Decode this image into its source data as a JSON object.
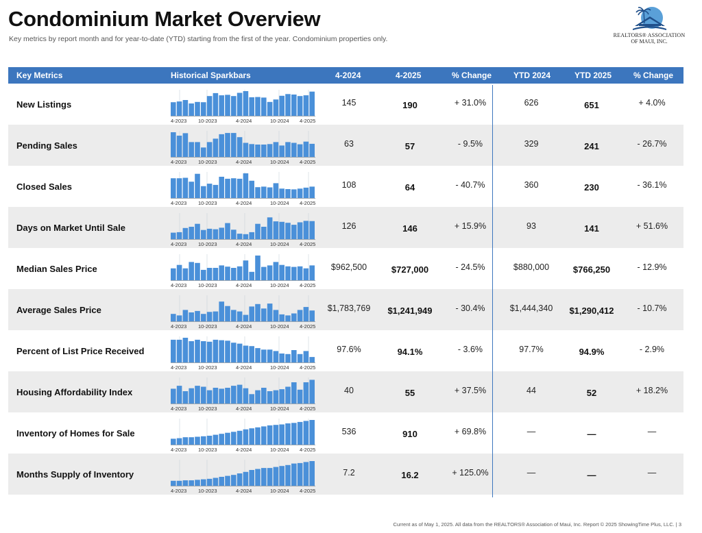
{
  "header": {
    "title": "Condominium Market Overview",
    "subtitle": "Key metrics by report month and for year-to-date (YTD) starting from the first of the year. Condominium properties only."
  },
  "logo": {
    "line1": "REALTORS® ASSOCIATION",
    "line2": "OF MAUI, INC."
  },
  "columns": {
    "metric": "Key Metrics",
    "spark": "Historical Sparkbars",
    "m1": "4-2024",
    "m2": "4-2025",
    "mchg": "% Change",
    "y1": "YTD 2024",
    "y2": "YTD 2025",
    "ychg": "% Change"
  },
  "spark_labels": [
    "4-2023",
    "10-2023",
    "4-2024",
    "10-2024",
    "4-2025"
  ],
  "colors": {
    "header": "#3c76be",
    "bar": "#4a90d9",
    "divider": "#3c76be",
    "shade": "#ececec"
  },
  "rows": [
    {
      "name": "New Listings",
      "m1": "145",
      "m2": "190",
      "mchg": "+ 31.0%",
      "y1": "626",
      "y2": "651",
      "ychg": "+ 4.0%",
      "bars": [
        0.55,
        0.58,
        0.64,
        0.5,
        0.56,
        0.55,
        0.8,
        0.92,
        0.83,
        0.85,
        0.8,
        0.93,
        1.0,
        0.75,
        0.76,
        0.74,
        0.56,
        0.66,
        0.81,
        0.88,
        0.86,
        0.8,
        0.83,
        0.98
      ]
    },
    {
      "name": "Pending Sales",
      "m1": "63",
      "m2": "57",
      "mchg": "- 9.5%",
      "y1": "329",
      "y2": "241",
      "ychg": "- 26.7%",
      "bars": [
        1.0,
        0.86,
        0.96,
        0.6,
        0.6,
        0.38,
        0.6,
        0.74,
        0.92,
        0.97,
        0.97,
        0.8,
        0.57,
        0.52,
        0.5,
        0.5,
        0.52,
        0.6,
        0.46,
        0.6,
        0.57,
        0.51,
        0.62,
        0.53
      ]
    },
    {
      "name": "Closed Sales",
      "m1": "108",
      "m2": "64",
      "mchg": "- 40.7%",
      "y1": "360",
      "y2": "230",
      "ychg": "- 36.1%",
      "bars": [
        0.8,
        0.8,
        0.82,
        0.66,
        0.98,
        0.48,
        0.58,
        0.53,
        0.86,
        0.78,
        0.8,
        0.78,
        1.0,
        0.7,
        0.44,
        0.46,
        0.43,
        0.6,
        0.38,
        0.36,
        0.35,
        0.38,
        0.42,
        0.46
      ]
    },
    {
      "name": "Days on Market Until Sale",
      "m1": "126",
      "m2": "146",
      "mchg": "+ 15.9%",
      "y1": "93",
      "y2": "141",
      "ychg": "+ 51.6%",
      "bars": [
        0.26,
        0.28,
        0.45,
        0.5,
        0.62,
        0.37,
        0.42,
        0.4,
        0.46,
        0.65,
        0.38,
        0.22,
        0.2,
        0.28,
        0.62,
        0.5,
        0.88,
        0.72,
        0.7,
        0.66,
        0.58,
        0.68,
        0.74,
        0.73
      ]
    },
    {
      "name": "Median Sales Price",
      "m1": "$962,500",
      "m2": "$727,000",
      "mchg": "- 24.5%",
      "y1": "$880,000",
      "y2": "$766,250",
      "ychg": "- 12.9%",
      "bars": [
        0.48,
        0.62,
        0.48,
        0.74,
        0.7,
        0.42,
        0.5,
        0.5,
        0.6,
        0.55,
        0.5,
        0.56,
        0.8,
        0.34,
        1.0,
        0.54,
        0.6,
        0.74,
        0.62,
        0.56,
        0.54,
        0.56,
        0.48,
        0.6
      ]
    },
    {
      "name": "Average Sales Price",
      "m1": "$1,783,769",
      "m2": "$1,241,949",
      "mchg": "- 30.4%",
      "y1": "$1,444,340",
      "y2": "$1,290,412",
      "ychg": "- 10.7%",
      "bars": [
        0.3,
        0.24,
        0.46,
        0.36,
        0.42,
        0.3,
        0.38,
        0.4,
        0.8,
        0.62,
        0.46,
        0.4,
        0.26,
        0.6,
        0.7,
        0.52,
        0.72,
        0.46,
        0.28,
        0.24,
        0.32,
        0.46,
        0.58,
        0.44
      ]
    },
    {
      "name": "Percent of List Price Received",
      "m1": "97.6%",
      "m2": "94.1%",
      "mchg": "- 3.6%",
      "y1": "97.7%",
      "y2": "94.9%",
      "ychg": "- 2.9%",
      "bars": [
        0.92,
        0.92,
        1.0,
        0.86,
        0.92,
        0.86,
        0.84,
        0.92,
        0.9,
        0.88,
        0.8,
        0.76,
        0.68,
        0.66,
        0.58,
        0.52,
        0.52,
        0.46,
        0.36,
        0.34,
        0.5,
        0.34,
        0.46,
        0.22
      ]
    },
    {
      "name": "Housing Affordability Index",
      "m1": "40",
      "m2": "55",
      "mchg": "+ 37.5%",
      "y1": "44",
      "y2": "52",
      "ychg": "+ 18.2%",
      "bars": [
        0.6,
        0.72,
        0.5,
        0.62,
        0.72,
        0.68,
        0.54,
        0.64,
        0.6,
        0.64,
        0.72,
        0.76,
        0.62,
        0.38,
        0.54,
        0.64,
        0.5,
        0.54,
        0.58,
        0.68,
        0.86,
        0.56,
        0.86,
        0.96
      ]
    },
    {
      "name": "Inventory of Homes for Sale",
      "m1": "536",
      "m2": "910",
      "mchg": "+ 69.8%",
      "y1": "—",
      "y2": "—",
      "ychg": "—",
      "bars": [
        0.24,
        0.26,
        0.3,
        0.3,
        0.32,
        0.34,
        0.36,
        0.4,
        0.44,
        0.48,
        0.52,
        0.56,
        0.62,
        0.66,
        0.7,
        0.74,
        0.78,
        0.8,
        0.82,
        0.86,
        0.88,
        0.92,
        0.96,
        1.0
      ]
    },
    {
      "name": "Months Supply of Inventory",
      "m1": "7.2",
      "m2": "16.2",
      "mchg": "+ 125.0%",
      "y1": "—",
      "y2": "—",
      "ychg": "—",
      "bars": [
        0.2,
        0.2,
        0.22,
        0.22,
        0.24,
        0.26,
        0.28,
        0.32,
        0.36,
        0.4,
        0.44,
        0.5,
        0.56,
        0.64,
        0.68,
        0.72,
        0.72,
        0.76,
        0.8,
        0.84,
        0.9,
        0.92,
        0.96,
        1.0
      ]
    }
  ],
  "footer": "Current as of May 1, 2025. All data from the REALTORS® Association of Maui, Inc. Report © 2025 ShowingTime Plus, LLC.  |  3"
}
